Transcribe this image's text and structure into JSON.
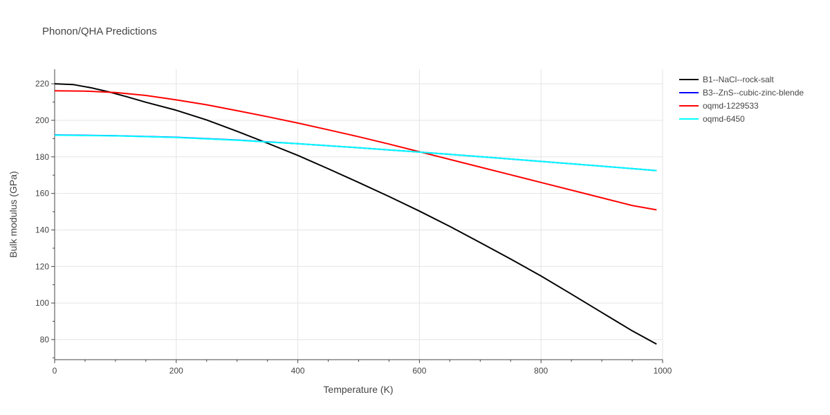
{
  "chart_data": {
    "type": "line",
    "title": "Phonon/QHA Predictions",
    "xlabel": "Temperature (K)",
    "ylabel": "Bulk modulus (GPa)",
    "xlim": [
      0,
      1000
    ],
    "ylim": [
      69,
      228
    ],
    "xticks": [
      0,
      200,
      400,
      600,
      800,
      1000
    ],
    "yticks": [
      80,
      100,
      120,
      140,
      160,
      180,
      200,
      220
    ],
    "grid": true,
    "legend_position": "top-right",
    "series": [
      {
        "name": "B1--NaCl--rock-salt",
        "color": "#000000",
        "x": [
          0,
          30,
          60,
          90,
          120,
          150,
          200,
          250,
          300,
          350,
          400,
          450,
          500,
          550,
          600,
          650,
          700,
          750,
          800,
          850,
          900,
          950,
          990
        ],
        "y": [
          220,
          219.6,
          217.8,
          215.5,
          212.8,
          209.9,
          205.5,
          200.2,
          194,
          187.5,
          180.8,
          173.5,
          166,
          158.3,
          150.3,
          141.9,
          133.1,
          124.1,
          114.8,
          104.9,
          94.8,
          84.8,
          77.5
        ]
      },
      {
        "name": "B3--ZnS--cubic-zinc-blende",
        "color": "#0000ff",
        "x": [
          0,
          100,
          200,
          300,
          400,
          500,
          600,
          700,
          800,
          900,
          990
        ],
        "y": [
          192,
          191.6,
          190.7,
          189.2,
          187.2,
          185,
          182.6,
          180.1,
          177.5,
          174.9,
          172.5
        ]
      },
      {
        "name": "oqmd-1229533",
        "color": "#ff0000",
        "x": [
          0,
          50,
          100,
          150,
          200,
          250,
          300,
          350,
          400,
          450,
          500,
          550,
          600,
          650,
          700,
          750,
          800,
          850,
          900,
          950,
          990
        ],
        "y": [
          216.2,
          216,
          215.2,
          213.6,
          211.2,
          208.5,
          205.3,
          202,
          198.5,
          194.8,
          191,
          187,
          182.8,
          178.6,
          174.4,
          170.2,
          166,
          161.8,
          157.6,
          153.4,
          151
        ]
      },
      {
        "name": "oqmd-6450",
        "color": "#00ffff",
        "x": [
          0,
          100,
          200,
          300,
          400,
          500,
          600,
          700,
          800,
          900,
          990
        ],
        "y": [
          191.9,
          191.5,
          190.6,
          189.1,
          187.2,
          185,
          182.6,
          180.1,
          177.5,
          174.9,
          172.5
        ]
      }
    ]
  }
}
